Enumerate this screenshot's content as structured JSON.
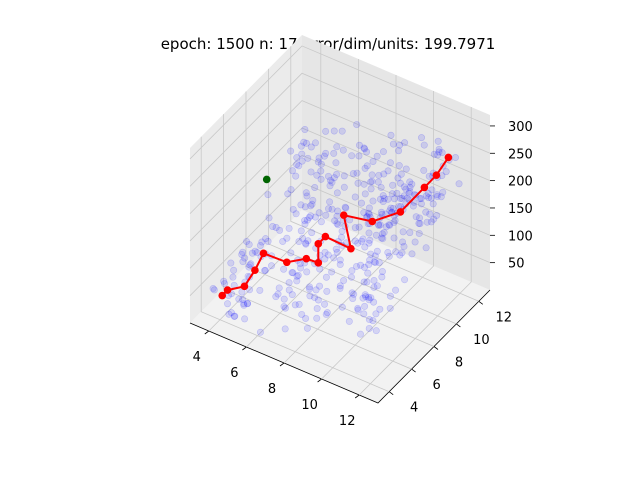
{
  "chart_data": {
    "type": "scatter3d",
    "title": "epoch: 1500 n: 17 error/dim/units: 199.7971",
    "x_ticks": [
      "4",
      "6",
      "8",
      "10",
      "12"
    ],
    "y_ticks": [
      "4",
      "6",
      "8",
      "10",
      "12"
    ],
    "z_ticks": [
      "50",
      "100",
      "150",
      "200",
      "250",
      "300"
    ],
    "xlim": [
      3,
      13
    ],
    "ylim": [
      3,
      13
    ],
    "zlim": [
      0,
      320
    ],
    "grid": true,
    "background_points": {
      "count": 420,
      "color": "#0000ff",
      "description_hidden": ""
    },
    "path": {
      "color": "#ff0000",
      "points": [
        {
          "x": 4.0,
          "y": 4.2,
          "z": 40
        },
        {
          "x": 4.4,
          "y": 4.0,
          "z": 60
        },
        {
          "x": 5.3,
          "y": 4.0,
          "z": 80
        },
        {
          "x": 5.5,
          "y": 4.6,
          "z": 100
        },
        {
          "x": 5.6,
          "y": 5.2,
          "z": 120
        },
        {
          "x": 6.6,
          "y": 5.6,
          "z": 110
        },
        {
          "x": 7.4,
          "y": 6.0,
          "z": 120
        },
        {
          "x": 7.8,
          "y": 6.4,
          "z": 110
        },
        {
          "x": 7.5,
          "y": 6.9,
          "z": 130
        },
        {
          "x": 7.7,
          "y": 7.2,
          "z": 140
        },
        {
          "x": 8.7,
          "y": 7.8,
          "z": 120
        },
        {
          "x": 8.2,
          "y": 8.0,
          "z": 170
        },
        {
          "x": 9.3,
          "y": 8.7,
          "z": 160
        },
        {
          "x": 10.2,
          "y": 9.7,
          "z": 170
        },
        {
          "x": 11.0,
          "y": 10.5,
          "z": 210
        },
        {
          "x": 11.4,
          "y": 10.9,
          "z": 230
        },
        {
          "x": 11.8,
          "y": 11.3,
          "z": 260
        }
      ]
    },
    "highlight_point": {
      "x": 4.4,
      "y": 7.5,
      "z": 190,
      "color": "#006400"
    }
  }
}
